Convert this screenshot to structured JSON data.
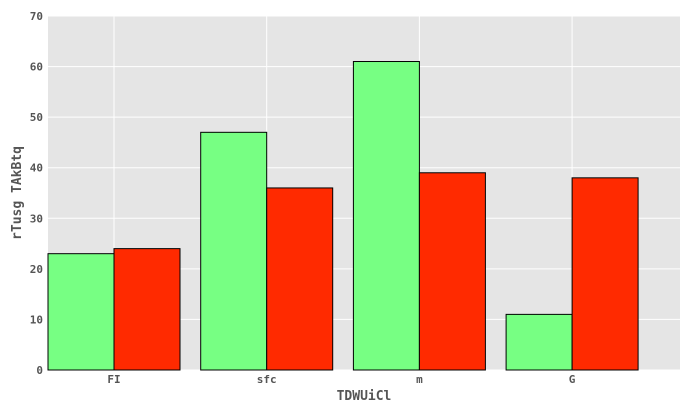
{
  "chart_data": {
    "type": "bar",
    "title": "",
    "xlabel": "TDWUiCl",
    "ylabel": "rTusg TAkBtq",
    "categories": [
      "FI",
      "sfc",
      "m",
      "G"
    ],
    "series": [
      {
        "values": [
          23,
          47,
          61,
          11
        ],
        "color": "#77ff83"
      },
      {
        "values": [
          24,
          36,
          39,
          38
        ],
        "color": "#ff2a00"
      }
    ],
    "ylim": [
      0,
      70
    ],
    "yticks": [
      0,
      10,
      20,
      30,
      40,
      50,
      60,
      70
    ],
    "grid": true,
    "legend": "none",
    "background_color": "#e5e5e5",
    "grid_color": "#ffffff"
  }
}
